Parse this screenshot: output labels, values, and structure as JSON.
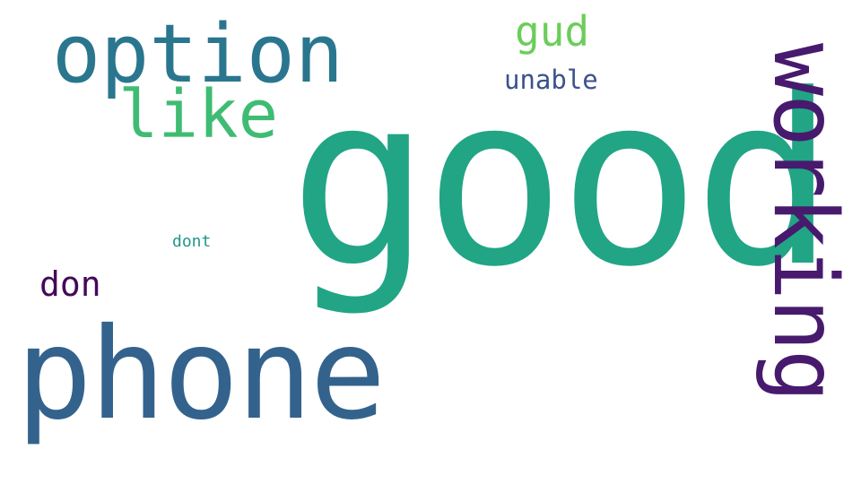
{
  "words": [
    {
      "text": "good",
      "color": "#21a585"
    },
    {
      "text": "phone",
      "color": "#33638d"
    },
    {
      "text": "working",
      "color": "#471a6e"
    },
    {
      "text": "option",
      "color": "#2a768e"
    },
    {
      "text": "like",
      "color": "#3fbc73"
    },
    {
      "text": "gud",
      "color": "#6ccd5a"
    },
    {
      "text": "unable",
      "color": "#3b528b"
    },
    {
      "text": "don",
      "color": "#44095a"
    },
    {
      "text": "dont",
      "color": "#22968b"
    }
  ]
}
